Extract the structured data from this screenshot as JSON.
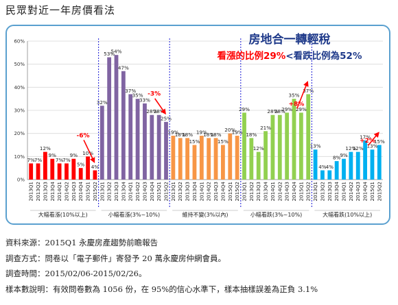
{
  "page": {
    "title": "民眾對近一年房價看法"
  },
  "colors": {
    "frame": "#5aa0cf",
    "red": "#ff0000",
    "purple": "#8064a2",
    "orange": "#f79646",
    "green": "#92d050",
    "blue": "#00b0f0",
    "navy": "#1f3a8a",
    "divider": "#2b2bd9"
  },
  "headline": {
    "line1": "房地合一轉輕稅",
    "line2_part1": "看漲的比例29%",
    "line2_sep": "<",
    "line2_part2": "看跌比例為52%"
  },
  "chart_data": {
    "type": "bar",
    "ylim": [
      0,
      60
    ],
    "yticks": [
      "0%",
      "10%",
      "20%",
      "30%",
      "40%",
      "50%",
      "60%"
    ],
    "categories": [
      "2013Q1",
      "2013Q2",
      "2013Q3",
      "2013Q4",
      "2014Q1",
      "2014Q2",
      "2014Q3",
      "2014Q4",
      "2015Q1",
      "2015Q2"
    ],
    "groups": [
      {
        "name": "大幅看漲(10%以上)",
        "color": "#ff0000",
        "values": [
          7,
          7,
          12,
          9,
          7,
          7,
          9,
          5,
          10,
          4
        ],
        "labels": [
          "7%",
          "7%",
          "12%",
          "9%",
          "7%",
          "7%",
          "9%",
          "5%",
          "10%",
          "4%"
        ]
      },
      {
        "name": "小幅看漲(3%~10%)",
        "color": "#8064a2",
        "values": [
          32,
          53,
          54,
          47,
          37,
          35,
          33,
          28,
          28,
          25
        ],
        "labels": [
          "32%",
          "53%",
          "54%",
          "47%",
          "37%",
          "35%",
          "33%",
          "28%",
          "28%",
          "25%"
        ]
      },
      {
        "name": "維持不變(3%以內)",
        "color": "#f79646",
        "values": [
          19,
          18,
          18,
          15,
          19,
          18,
          18,
          15,
          20,
          19
        ],
        "labels": [
          "19%",
          "18%",
          "18%",
          "15%",
          "19%",
          "18%",
          "18%",
          "15%",
          "20%",
          "19%"
        ]
      },
      {
        "name": "小幅看跌(3%~10%)",
        "color": "#92d050",
        "values": [
          29,
          18,
          12,
          21,
          28,
          28,
          29,
          35,
          29,
          37
        ],
        "labels": [
          "29%",
          "18%",
          "12%",
          "21%",
          "28%",
          "28%",
          "29%",
          "35%",
          "29%",
          "37%"
        ]
      },
      {
        "name": "大幅看跌(10%以上)",
        "color": "#00b0f0",
        "values": [
          13,
          4,
          4,
          8,
          9,
          12,
          12,
          17,
          13,
          15
        ],
        "labels": [
          "13%",
          "4%",
          "4%",
          "8%",
          "9%",
          "12%",
          "12%",
          "17%",
          "13%",
          "15%"
        ]
      }
    ],
    "annotations": [
      "-6%",
      "-3%",
      "+8%",
      "+2%"
    ]
  },
  "notes": {
    "source_label": "資料來源：",
    "source_value": "2015Q1 永慶房產趨勢前瞻報告",
    "method_label": "調查方式：",
    "method_value": "問卷以「電子郵件」寄發予 20 萬永慶房仲網會員。",
    "period_label": "調查時間：",
    "period_value": "2015/02/06-2015/02/26。",
    "sample_label": "樣本數說明：",
    "sample_value": "有效問卷數為 1056 份，在 95%的信心水準下，樣本抽樣誤差為正負 3.1%"
  }
}
